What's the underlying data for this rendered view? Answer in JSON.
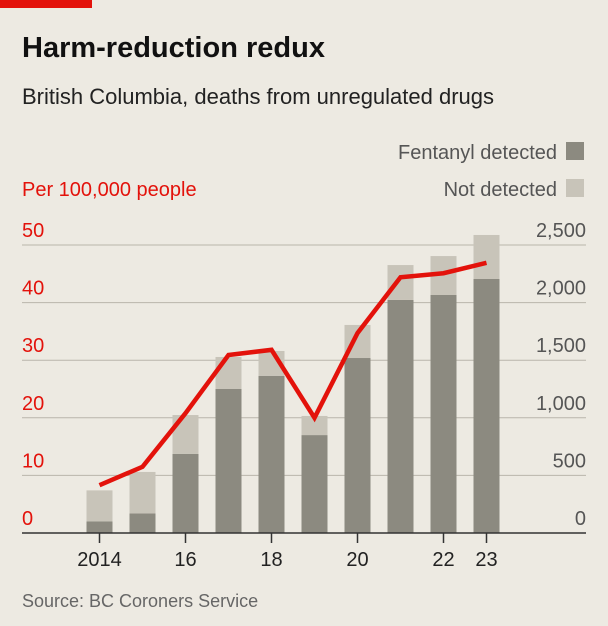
{
  "chart_data": {
    "type": "bar",
    "title": "Harm-reduction redux",
    "subtitle": "British Columbia, deaths from unregulated drugs",
    "y_label": "Per 100,000 people",
    "source": "Source: BC Coroners Service",
    "categories": [
      "2014",
      null,
      "16",
      null,
      "18",
      null,
      "20",
      null,
      "22",
      "23"
    ],
    "series": [
      {
        "name": "Fentanyl detected",
        "type": "bar",
        "axis": "y2",
        "color": "#8c8a80",
        "values": [
          100,
          170,
          686,
          1250,
          1363,
          850,
          1519,
          2023,
          2066,
          2205
        ]
      },
      {
        "name": "Not detected",
        "type": "bar",
        "axis": "y2",
        "color": "#c8c4b9",
        "values": [
          270,
          360,
          338,
          278,
          217,
          166,
          287,
          303,
          338,
          382
        ]
      },
      {
        "type": "line",
        "color": "#e3120b",
        "values": [
          8.3,
          11.5,
          20.8,
          30.9,
          31.8,
          20.0,
          34.7,
          44.4,
          45.1,
          46.9
        ]
      }
    ],
    "stacked": true,
    "ylim": [
      0,
      50
    ],
    "yticks": [
      0,
      10,
      20,
      30,
      40,
      50
    ],
    "y2lim": [
      0,
      2500
    ],
    "y2ticks": [
      0,
      500,
      {
        "value": 1000,
        "label": "1,000"
      },
      {
        "value": 1500,
        "label": "1,500"
      },
      {
        "value": 2000,
        "label": "2,000"
      },
      {
        "value": 2500,
        "label": "2,500"
      }
    ],
    "grid": true,
    "legend": "top-right"
  }
}
